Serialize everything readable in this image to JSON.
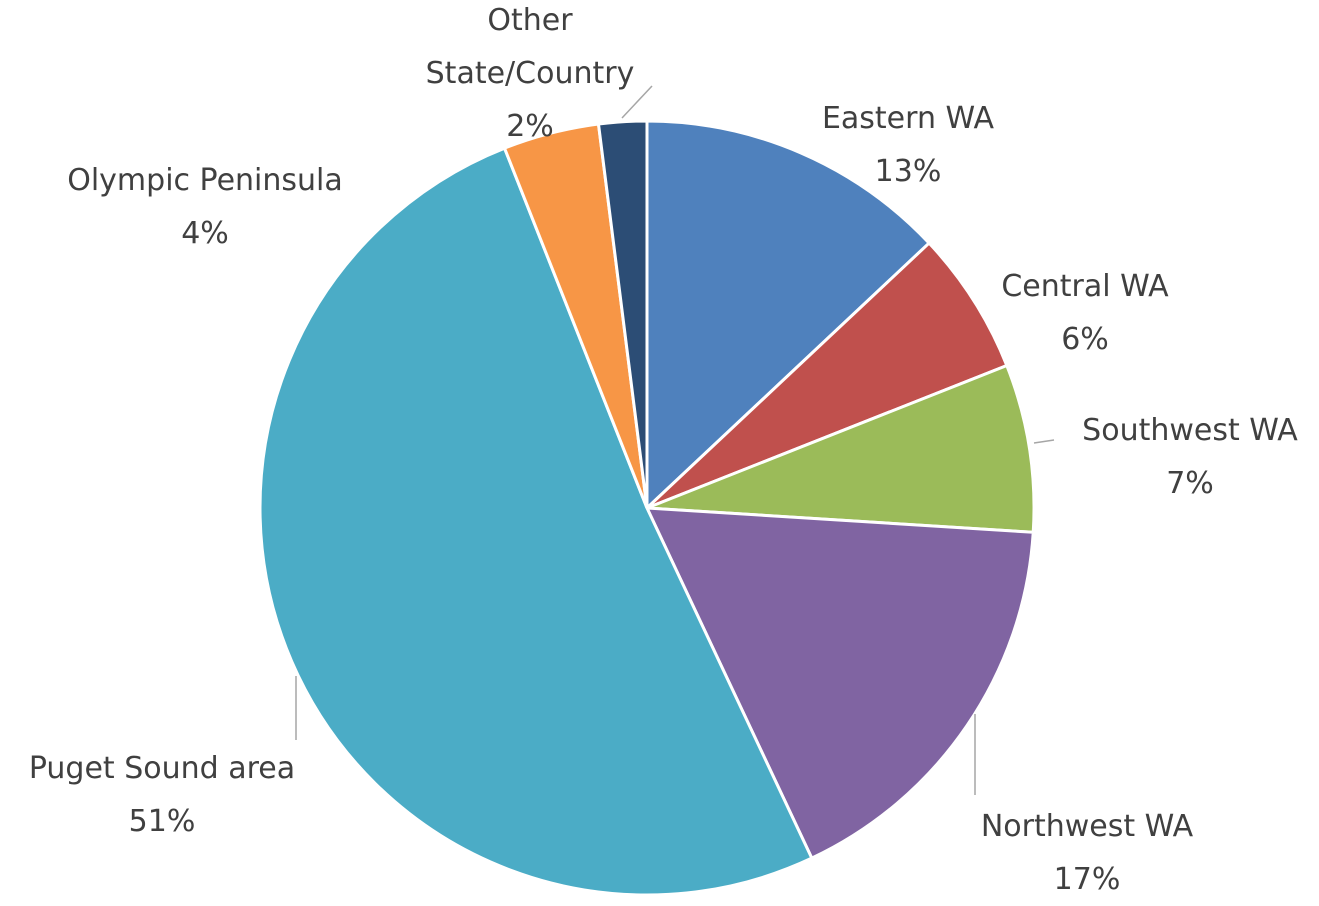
{
  "chart_data": {
    "type": "pie",
    "categories": [
      "Eastern WA",
      "Central WA",
      "Southwest WA",
      "Northwest WA",
      "Puget Sound area",
      "Olympic Peninsula",
      "Other State/Country"
    ],
    "values": [
      13,
      6,
      7,
      17,
      51,
      4,
      2
    ],
    "value_labels": [
      "13%",
      "6%",
      "7%",
      "17%",
      "51%",
      "4%",
      "2%"
    ],
    "colors": [
      "#4f81bd",
      "#c0504d",
      "#9bbb59",
      "#8064a2",
      "#4bacc6",
      "#f79646",
      "#2c4d75"
    ]
  }
}
